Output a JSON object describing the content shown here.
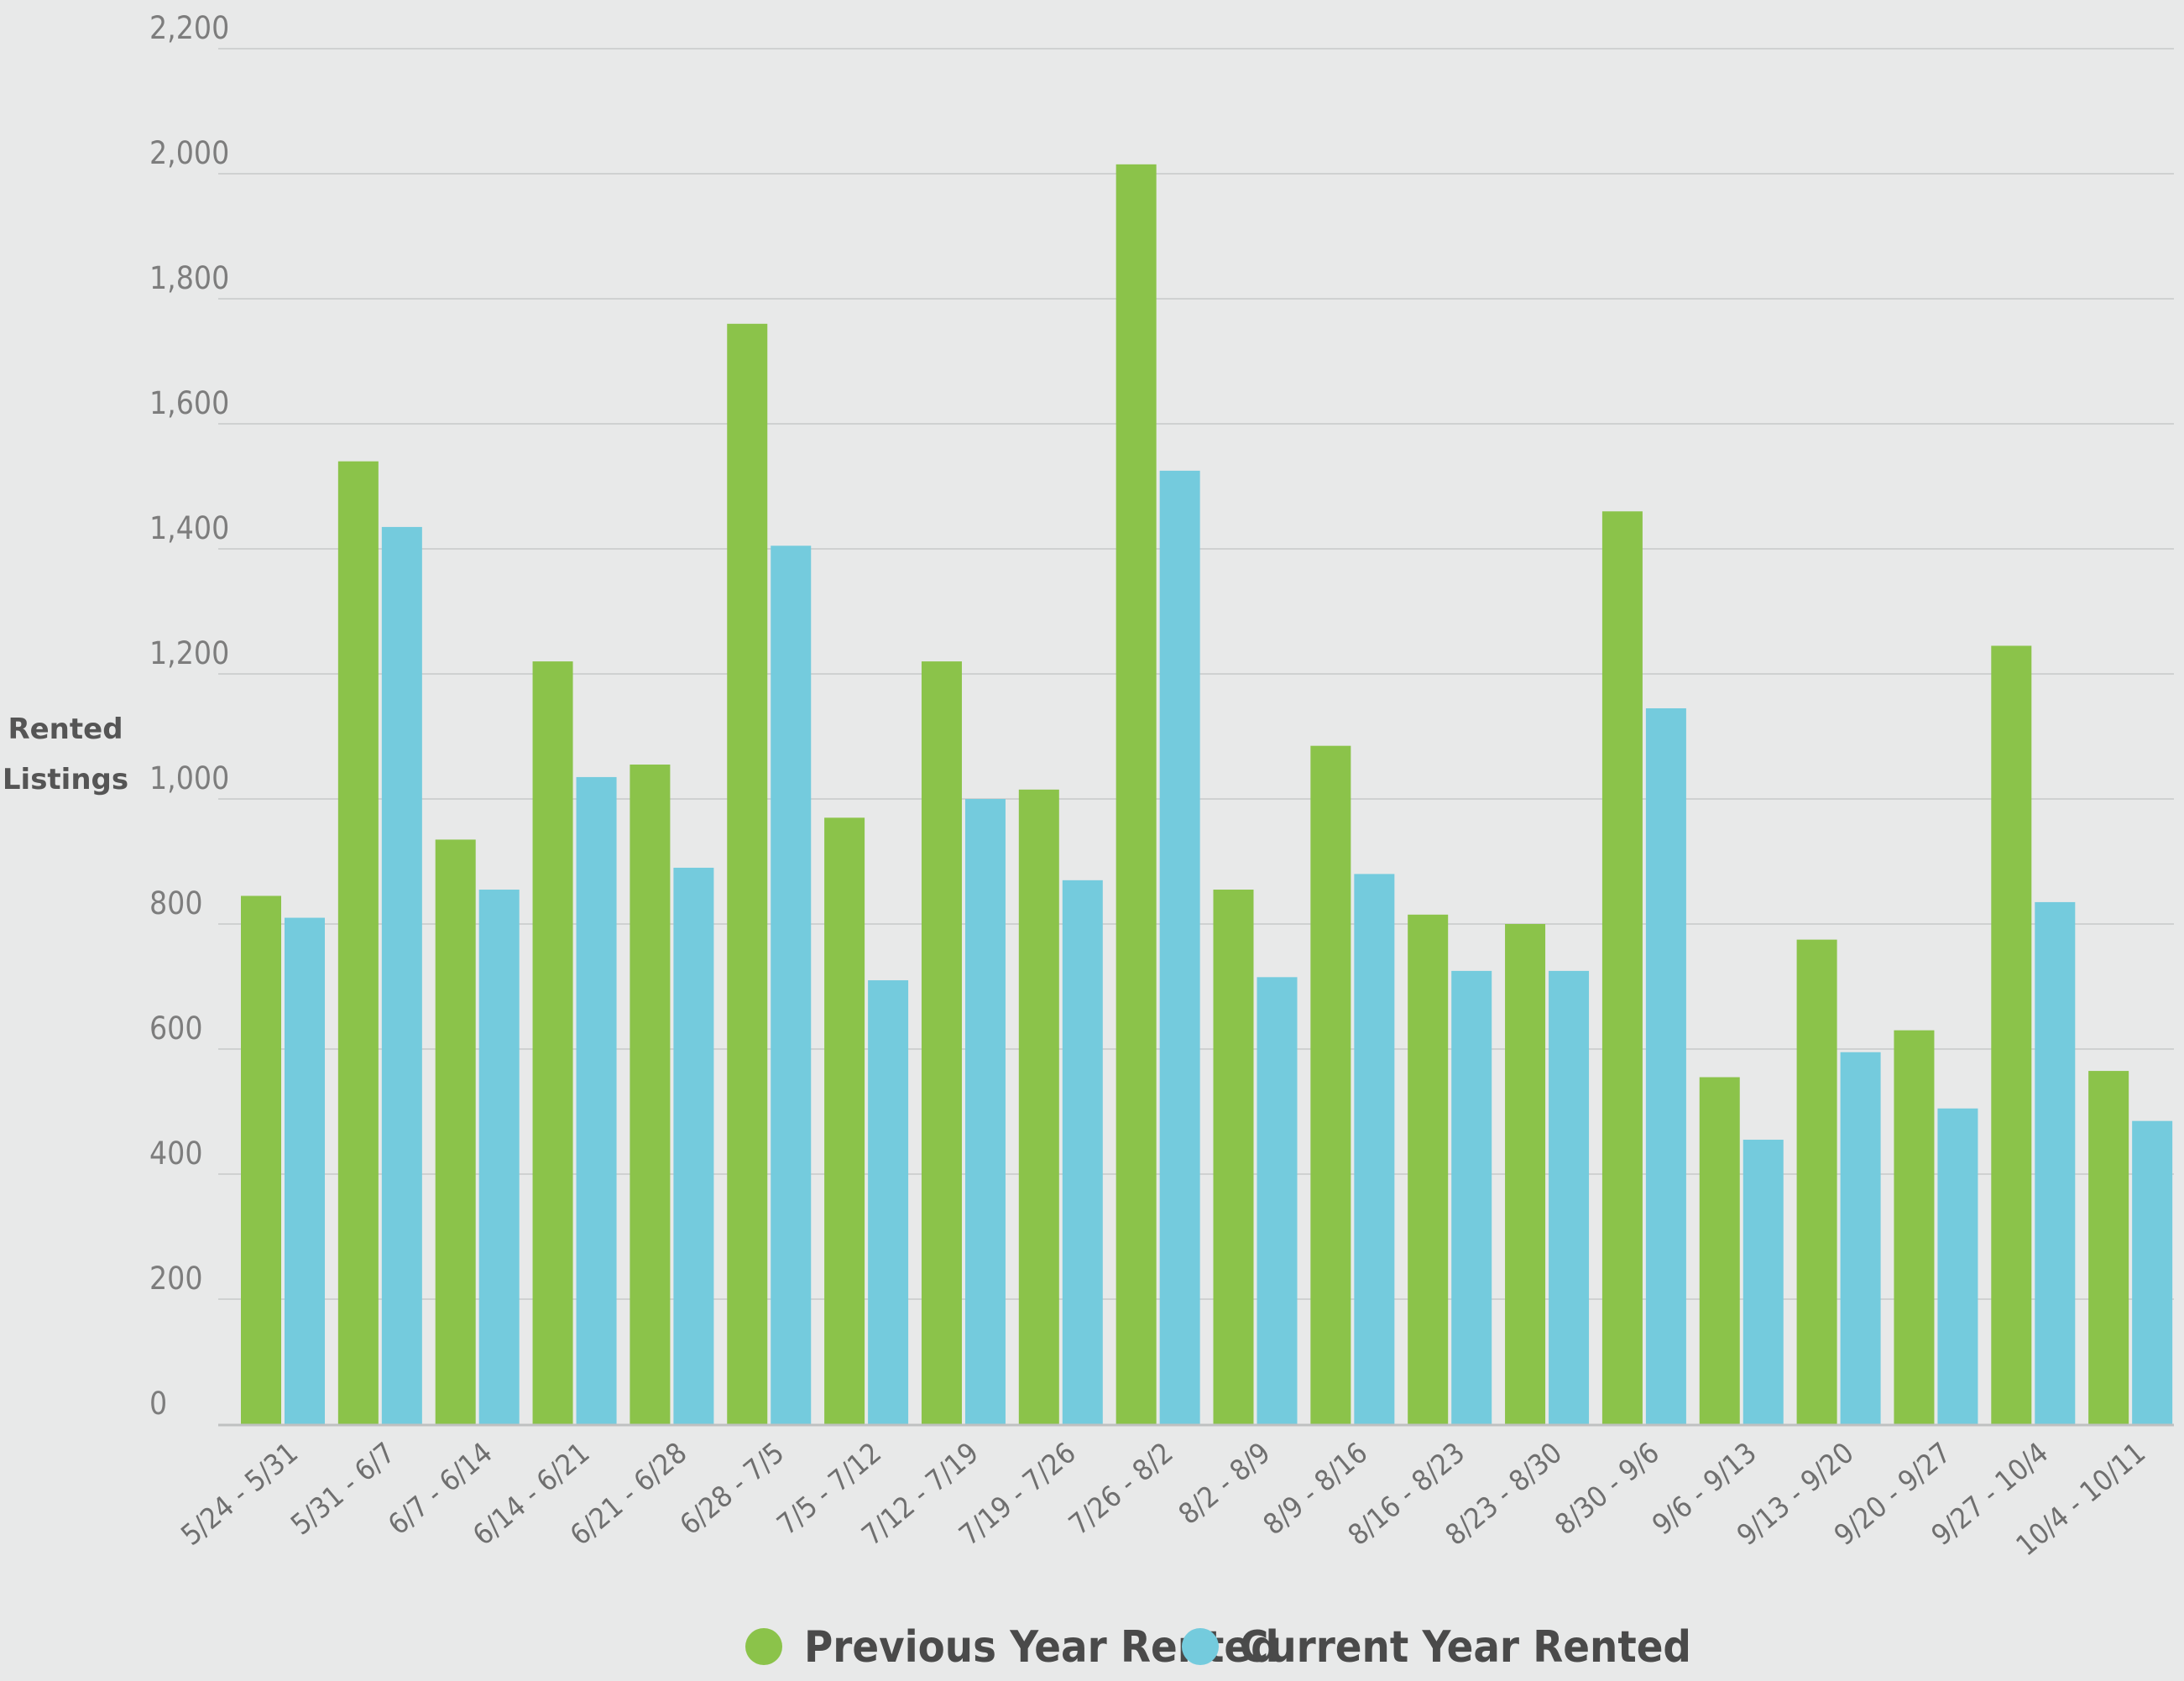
{
  "chart_data": {
    "type": "bar",
    "ylabel": "Rented Listings",
    "ylim": [
      0,
      2200
    ],
    "yticks": [
      "0",
      "200",
      "400",
      "600",
      "800",
      "1,000",
      "1,200",
      "1,400",
      "1,600",
      "1,800",
      "2,000",
      "2,200"
    ],
    "grid": true,
    "legend_position": "bottom",
    "categories": [
      "5/24 - 5/31",
      "5/31 - 6/7",
      "6/7 - 6/14",
      "6/14 - 6/21",
      "6/21 - 6/28",
      "6/28 - 7/5",
      "7/5 - 7/12",
      "7/12 - 7/19",
      "7/19 - 7/26",
      "7/26 - 8/2",
      "8/2 - 8/9",
      "8/9 - 8/16",
      "8/16 - 8/23",
      "8/23 - 8/30",
      "8/30 - 9/6",
      "9/6 - 9/13",
      "9/13 - 9/20",
      "9/20 - 9/27",
      "9/27 - 10/4",
      "10/4 - 10/11"
    ],
    "series": [
      {
        "name": "Previous Year Rented",
        "color": "#8bc34a",
        "values": [
          845,
          1540,
          935,
          1220,
          1055,
          1760,
          970,
          1220,
          1015,
          2015,
          855,
          1085,
          815,
          800,
          1460,
          555,
          775,
          630,
          1245,
          565
        ]
      },
      {
        "name": "Current Year Rented",
        "color": "#74cbdd",
        "values": [
          810,
          1435,
          855,
          1035,
          890,
          1405,
          710,
          1000,
          870,
          1525,
          715,
          880,
          725,
          725,
          1145,
          455,
          595,
          505,
          835,
          485
        ]
      }
    ]
  }
}
